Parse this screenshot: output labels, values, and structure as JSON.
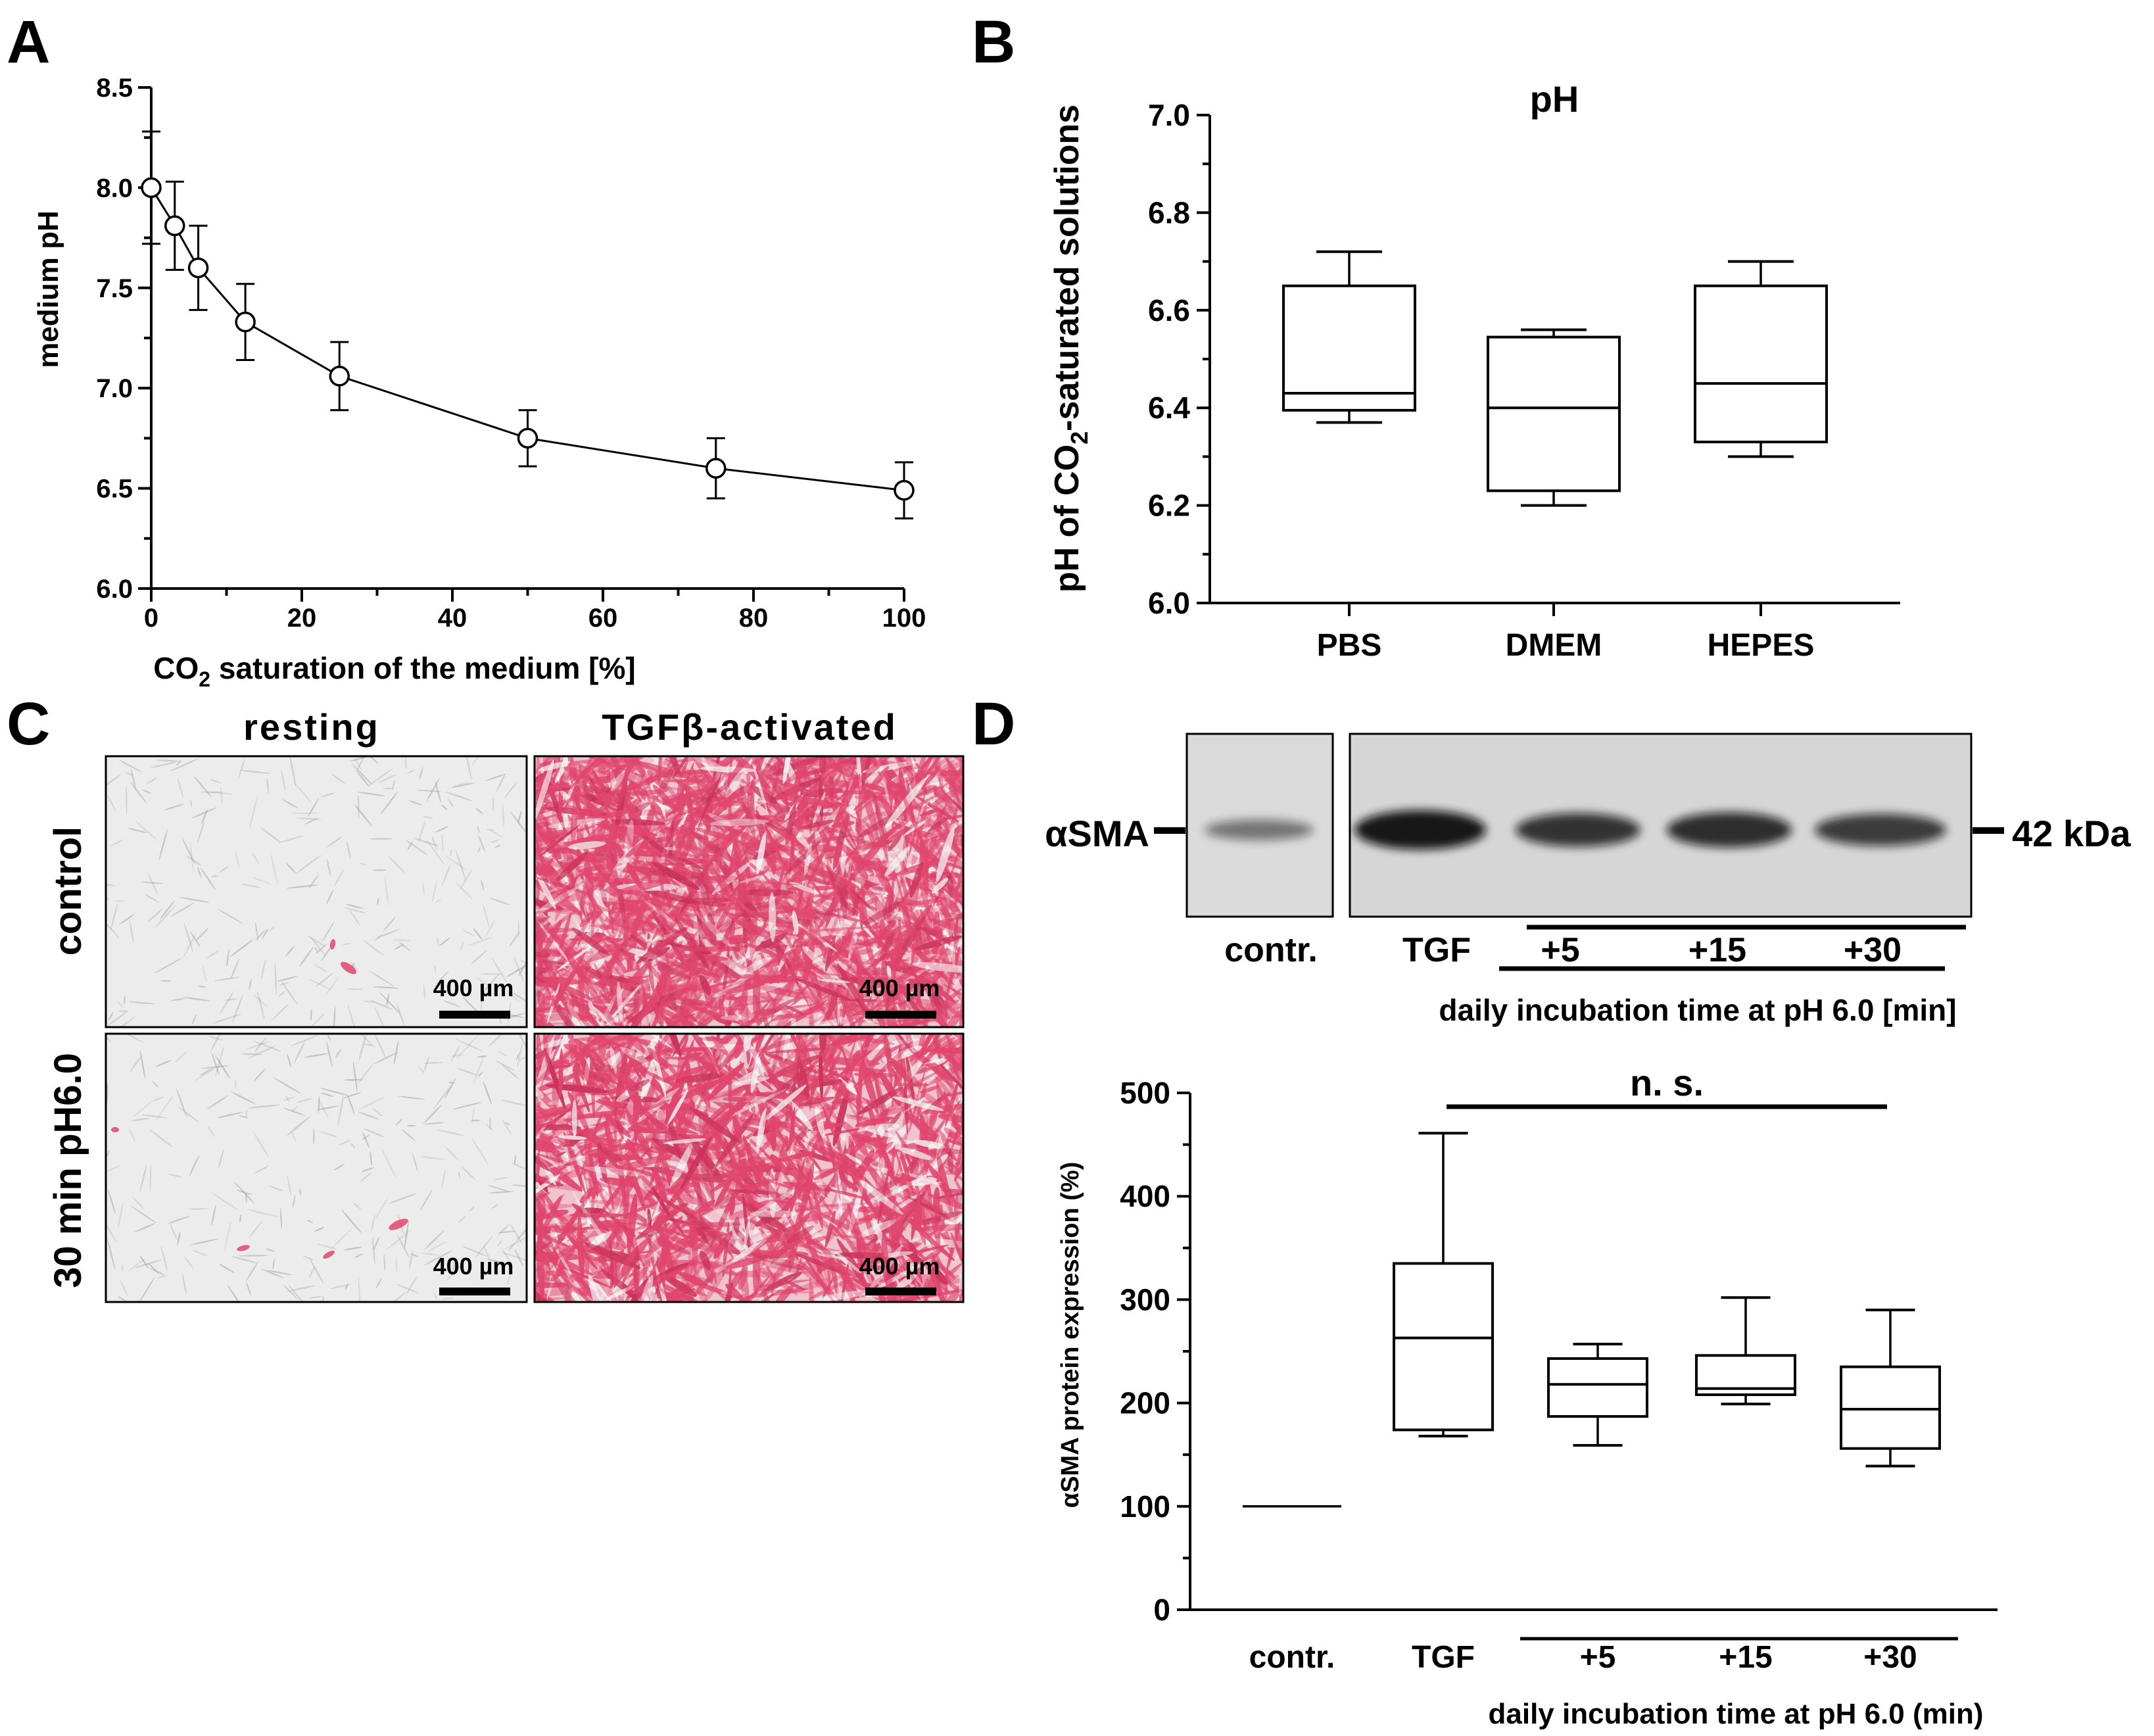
{
  "colors": {
    "ink": "#000000",
    "stain": "#e0466e",
    "photo_bg": "#ececec",
    "blot_bg": "#d9d9d9",
    "band": "#111111"
  },
  "panel_letters": [
    "A",
    "B",
    "C",
    "D"
  ],
  "chart_data": [
    {
      "id": "A",
      "type": "line",
      "title": "",
      "xlabel": "CO2 saturation of the medium [%]",
      "ylabel": "medium pH",
      "xlim": [
        0,
        100
      ],
      "ylim": [
        6.0,
        8.5
      ],
      "xticks": [
        "0",
        "20",
        "40",
        "60",
        "80",
        "100"
      ],
      "yticks": [
        "6.0",
        "6.5",
        "7.0",
        "7.5",
        "8.0",
        "8.5"
      ],
      "x": [
        0,
        3.125,
        6.25,
        12.5,
        25,
        50,
        75,
        100
      ],
      "y": [
        8.0,
        7.81,
        7.6,
        7.33,
        7.06,
        6.75,
        6.6,
        6.49
      ],
      "err": [
        0.28,
        0.22,
        0.21,
        0.19,
        0.17,
        0.14,
        0.15,
        0.14
      ]
    },
    {
      "id": "B",
      "type": "box",
      "title": "pH",
      "xlabel": "",
      "ylabel": "pH of CO2-saturated solutions",
      "ylim": [
        6.0,
        7.0
      ],
      "yticks": [
        "6.0",
        "6.2",
        "6.4",
        "6.6",
        "6.8",
        "7.0"
      ],
      "categories": [
        "PBS",
        "DMEM",
        "HEPES"
      ],
      "boxes": [
        {
          "min": 6.37,
          "q1": 6.395,
          "median": 6.43,
          "q3": 6.65,
          "max": 6.72
        },
        {
          "min": 6.2,
          "q1": 6.23,
          "median": 6.4,
          "q3": 6.545,
          "max": 6.56
        },
        {
          "min": 6.3,
          "q1": 6.33,
          "median": 6.45,
          "q3": 6.65,
          "max": 6.7
        }
      ]
    },
    {
      "id": "D",
      "type": "box",
      "title": "",
      "xlabel": "daily incubation time at pH 6.0 (min)",
      "ylabel": "αSMA protein expression (%)",
      "ylim": [
        0,
        500
      ],
      "yticks": [
        "0",
        "100",
        "200",
        "300",
        "400",
        "500"
      ],
      "categories": [
        "contr.",
        "TGF",
        "+5",
        "+15",
        "+30"
      ],
      "annotation": "n. s.",
      "control_line": 100,
      "boxes": [
        null,
        {
          "min": 168,
          "q1": 174,
          "median": 263,
          "q3": 335,
          "max": 461
        },
        {
          "min": 159,
          "q1": 187,
          "median": 218,
          "q3": 243,
          "max": 257
        },
        {
          "min": 199,
          "q1": 208,
          "median": 214,
          "q3": 246,
          "max": 302
        },
        {
          "min": 139,
          "q1": 156,
          "median": 194,
          "q3": 235,
          "max": 290
        }
      ]
    }
  ],
  "panel_a": {
    "xlabel_pre": "CO",
    "xlabel_sub": "2",
    "xlabel_post": " saturation of the medium [%]",
    "ylabel": "medium pH"
  },
  "panel_b": {
    "ylabel_pre": "pH of CO",
    "ylabel_sub": "2",
    "ylabel_post": "-saturated solutions",
    "title": "pH"
  },
  "panel_c": {
    "col_headers": [
      "resting",
      "TGFβ-activated"
    ],
    "row_labels": [
      "control",
      "30 min pH6.0"
    ],
    "scale_bar": "400 µm"
  },
  "blot": {
    "protein": "αSMA",
    "size": "42 kDa",
    "lanes": [
      "contr.",
      "TGF",
      "+5",
      "+15",
      "+30"
    ],
    "band_intensity": [
      0.35,
      1.0,
      0.8,
      0.85,
      0.75
    ],
    "axis_title": "daily incubation time at pH 6.0 [min]"
  }
}
